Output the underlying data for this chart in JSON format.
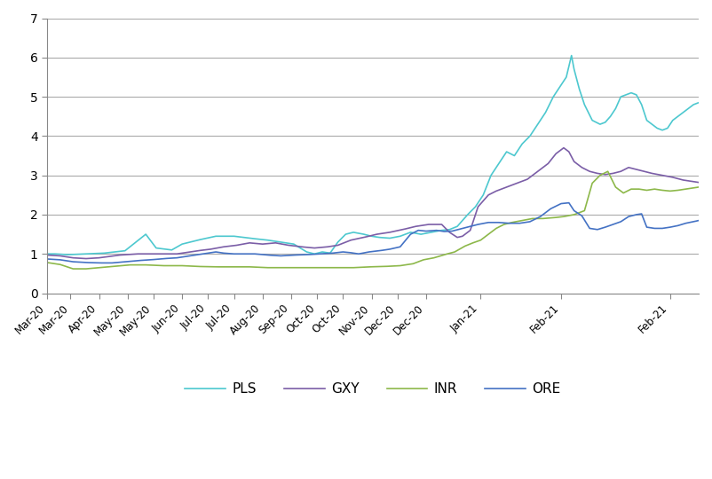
{
  "title": "",
  "xlabel": "",
  "ylabel": "",
  "ylim": [
    0,
    7
  ],
  "yticks": [
    0,
    1,
    2,
    3,
    4,
    5,
    6,
    7
  ],
  "colors": {
    "PLS": "#4DC8CF",
    "GXY": "#7B5EA7",
    "INR": "#8DB84A",
    "ORE": "#4472C4"
  },
  "x_labels": [
    "Mar-20",
    "Mar-20",
    "Apr-20",
    "May-20",
    "May-20",
    "Jun-20",
    "Jul-20",
    "Jul-20",
    "Aug-20",
    "Sep-20",
    "Oct-20",
    "Oct-20",
    "Nov-20",
    "Dec-20",
    "Dec-20",
    "Jan-21",
    "Feb-21",
    "Feb-21"
  ],
  "background_color": "#FFFFFF",
  "grid_color": "#AAAAAA",
  "linewidth": 1.2
}
